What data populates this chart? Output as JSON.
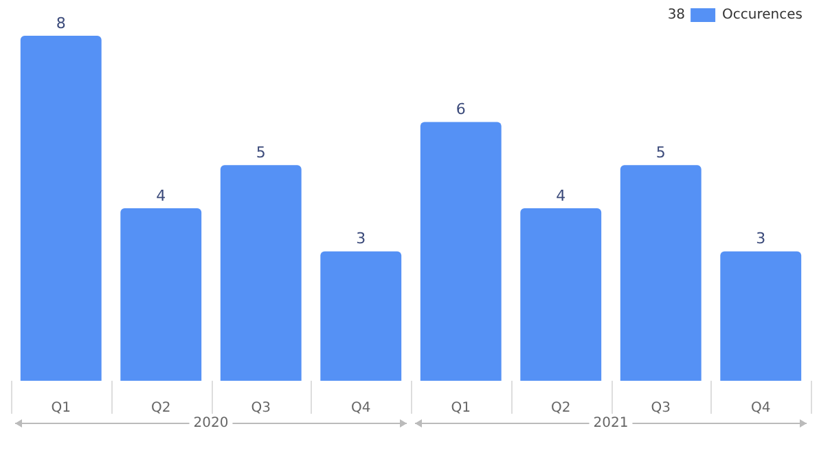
{
  "chart_data": {
    "type": "bar",
    "categories": [
      "Q1",
      "Q2",
      "Q3",
      "Q4",
      "Q1",
      "Q2",
      "Q3",
      "Q4"
    ],
    "series": [
      {
        "name": "Occurences",
        "color": "#5591f5",
        "values": [
          8,
          4,
          5,
          3,
          6,
          4,
          5,
          3
        ]
      }
    ],
    "data_labels": true,
    "legend": "top right",
    "grid": false,
    "annotations": [
      "38",
      "2020",
      "2021"
    ]
  }
}
